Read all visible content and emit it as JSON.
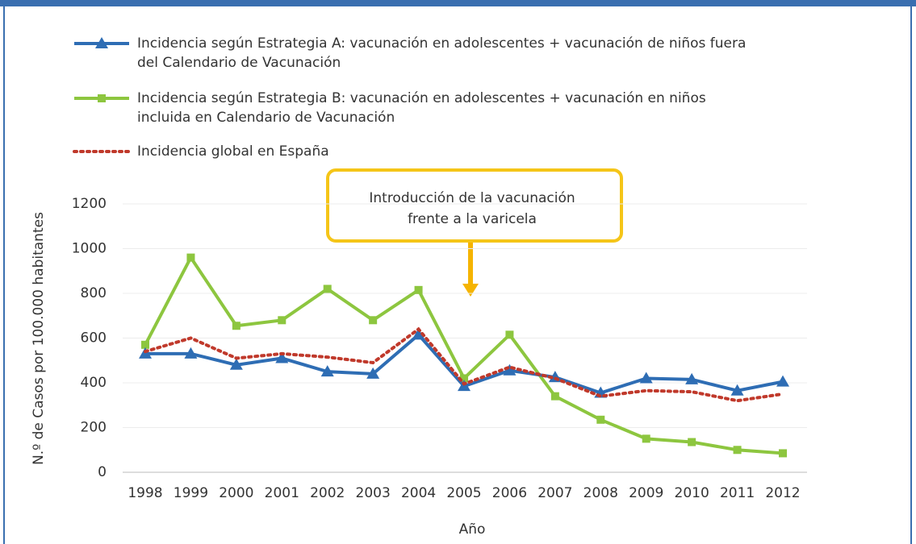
{
  "chart_data": {
    "type": "line",
    "categories": [
      "1998",
      "1999",
      "2000",
      "2001",
      "2002",
      "2003",
      "2004",
      "2005",
      "2006",
      "2007",
      "2008",
      "2009",
      "2010",
      "2011",
      "2012"
    ],
    "series": [
      {
        "name": "Incidencia según Estrategia A: vacunación en adolescentes + vacunación de niños fuera del Calendario de Vacunación",
        "color": "#2e6db4",
        "marker": "triangle",
        "style": "solid",
        "values": [
          530,
          530,
          480,
          510,
          450,
          440,
          615,
          385,
          455,
          425,
          355,
          420,
          415,
          365,
          405
        ]
      },
      {
        "name": "Incidencia según Estrategia B: vacunación en adolescentes + vacunación en niños incluida en Calendario de Vacunación",
        "color": "#8dc63f",
        "marker": "square",
        "style": "solid",
        "values": [
          570,
          960,
          655,
          680,
          820,
          680,
          815,
          420,
          615,
          340,
          235,
          150,
          135,
          100,
          85
        ]
      },
      {
        "name": "Incidencia global en España",
        "color": "#c0392b",
        "marker": "none",
        "style": "dotted",
        "values": [
          540,
          600,
          510,
          530,
          515,
          490,
          640,
          395,
          470,
          420,
          340,
          365,
          360,
          320,
          350
        ]
      }
    ],
    "ylim": [
      0,
      1200
    ],
    "yticks": [
      0,
      200,
      400,
      600,
      800,
      1000,
      1200
    ],
    "grid": true,
    "ylabel": "N.º de Casos por 100.000 habitantes",
    "xlabel": "Año",
    "annotation": [
      "Introducción de la vacunación",
      "frente a la varicela"
    ]
  }
}
